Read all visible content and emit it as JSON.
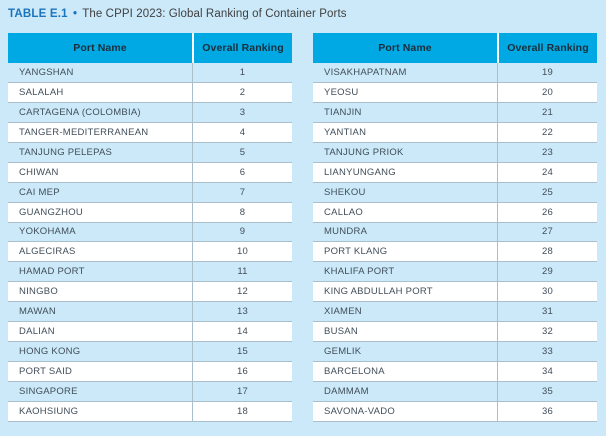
{
  "title": {
    "label": "TABLE E.1",
    "separator": "•",
    "text": "The CPPI 2023: Global Ranking of Container Ports"
  },
  "table_header": {
    "port_col": "Port Name",
    "rank_col": "Overall Ranking"
  },
  "tables": [
    {
      "name": "left",
      "rows": [
        [
          "YANGSHAN",
          "1"
        ],
        [
          "SALALAH",
          "2"
        ],
        [
          "CARTAGENA (COLOMBIA)",
          "3"
        ],
        [
          "TANGER-MEDITERRANEAN",
          "4"
        ],
        [
          "TANJUNG PELEPAS",
          "5"
        ],
        [
          "CHIWAN",
          "6"
        ],
        [
          "CAI MEP",
          "7"
        ],
        [
          "GUANGZHOU",
          "8"
        ],
        [
          "YOKOHAMA",
          "9"
        ],
        [
          "ALGECIRAS",
          "10"
        ],
        [
          "HAMAD PORT",
          "11"
        ],
        [
          "NINGBO",
          "12"
        ],
        [
          "MAWAN",
          "13"
        ],
        [
          "DALIAN",
          "14"
        ],
        [
          "HONG KONG",
          "15"
        ],
        [
          "PORT SAID",
          "16"
        ],
        [
          "SINGAPORE",
          "17"
        ],
        [
          "KAOHSIUNG",
          "18"
        ]
      ]
    },
    {
      "name": "right",
      "rows": [
        [
          "VISAKHAPATNAM",
          "19"
        ],
        [
          "YEOSU",
          "20"
        ],
        [
          "TIANJIN",
          "21"
        ],
        [
          "YANTIAN",
          "22"
        ],
        [
          "TANJUNG PRIOK",
          "23"
        ],
        [
          "LIANYUNGANG",
          "24"
        ],
        [
          "SHEKOU",
          "25"
        ],
        [
          "CALLAO",
          "26"
        ],
        [
          "MUNDRA",
          "27"
        ],
        [
          "PORT KLANG",
          "28"
        ],
        [
          "KHALIFA PORT",
          "29"
        ],
        [
          "KING ABDULLAH PORT",
          "30"
        ],
        [
          "XIAMEN",
          "31"
        ],
        [
          "BUSAN",
          "32"
        ],
        [
          "GEMLIK",
          "33"
        ],
        [
          "BARCELONA",
          "34"
        ],
        [
          "DAMMAM",
          "35"
        ],
        [
          "SAVONA-VADO",
          "36"
        ]
      ]
    }
  ],
  "colors": {
    "page_background": "#cbe9f8",
    "header_background": "#00a9e3",
    "header_text": "#1b2d3a",
    "row_alt_background": "#ffffff",
    "row_text": "#414e5a",
    "grid_line": "#a9bfcc",
    "title_accent": "#1c75bc",
    "title_text": "#404041"
  }
}
